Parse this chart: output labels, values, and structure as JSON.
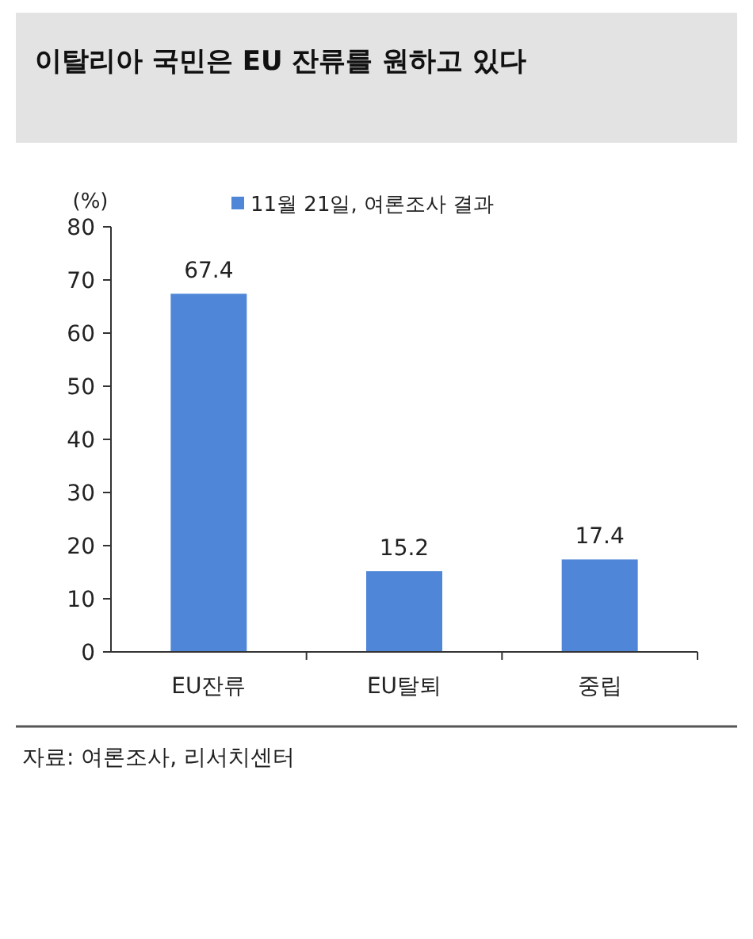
{
  "chart_data": {
    "type": "bar",
    "title": "이탈리아 국민은 EU 잔류를 원하고 있다",
    "ylabel": "(%)",
    "categories": [
      "EU잔류",
      "EU탈퇴",
      "중립"
    ],
    "series": [
      {
        "name": "11월 21일, 여론조사 결과",
        "color": "#4f86d8",
        "values": [
          67.4,
          15.2,
          17.4
        ]
      }
    ],
    "ylim": [
      0,
      80
    ],
    "yticks": [
      0,
      10,
      20,
      30,
      40,
      50,
      60,
      70,
      80
    ],
    "data_labels": true,
    "legend": "top",
    "grid": false,
    "annotations": [
      "자료: 여론조사, 리서치센터"
    ]
  }
}
